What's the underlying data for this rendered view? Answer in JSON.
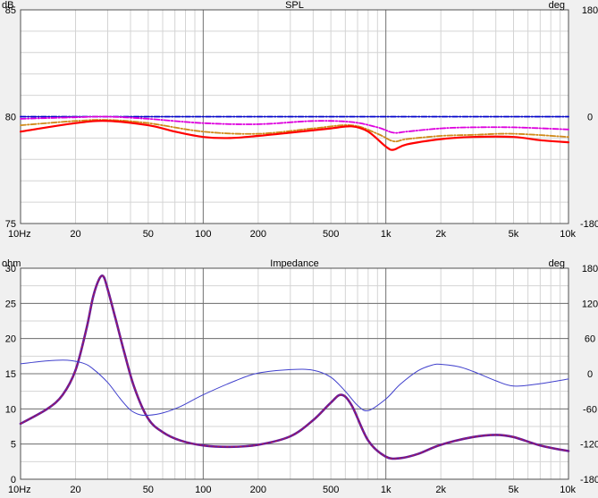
{
  "chart_data": [
    {
      "type": "line",
      "title": "SPL",
      "left_unit": "dB",
      "right_unit": "deg",
      "x_scale": "log",
      "xlim": [
        10,
        10000
      ],
      "ylim_left": [
        75,
        85
      ],
      "ylim_right": [
        -180,
        180
      ],
      "x_tick_labels": [
        "10Hz",
        "20",
        "50",
        "100",
        "200",
        "500",
        "1k",
        "2k",
        "5k",
        "10k"
      ],
      "x_tick_values": [
        10,
        20,
        50,
        100,
        200,
        500,
        1000,
        2000,
        5000,
        10000
      ],
      "y_left_tick_labels": [
        "85",
        "80",
        "75"
      ],
      "y_left_tick_values": [
        85,
        80,
        75
      ],
      "y_right_tick_labels": [
        "180",
        "0",
        "-180"
      ],
      "y_right_tick_values": [
        180,
        0,
        -180
      ],
      "grid": true,
      "series": [
        {
          "color": "#0000cc",
          "style": "dashdot",
          "x": [
            10,
            100,
            1000,
            10000
          ],
          "y": [
            80.0,
            80.0,
            80.0,
            80.0
          ]
        },
        {
          "color": "#dd00dd",
          "style": "dashdot",
          "x": [
            10,
            20,
            30,
            50,
            100,
            200,
            400,
            650,
            900,
            1100,
            1300,
            2000,
            3000,
            5000,
            10000
          ],
          "y": [
            79.9,
            79.97,
            80.0,
            79.9,
            79.7,
            79.65,
            79.8,
            79.75,
            79.5,
            79.25,
            79.3,
            79.45,
            79.5,
            79.5,
            79.4
          ]
        },
        {
          "color": "#d08a1a",
          "style": "dashdot",
          "x": [
            10,
            20,
            30,
            50,
            100,
            200,
            400,
            650,
            900,
            1100,
            1300,
            2000,
            3000,
            5000,
            10000
          ],
          "y": [
            79.6,
            79.8,
            79.85,
            79.7,
            79.3,
            79.2,
            79.45,
            79.6,
            79.2,
            78.85,
            78.95,
            79.1,
            79.15,
            79.2,
            79.05
          ]
        },
        {
          "color": "#ff0000",
          "style": "solid",
          "x": [
            10,
            20,
            30,
            50,
            70,
            100,
            140,
            200,
            300,
            500,
            650,
            800,
            1000,
            1100,
            1300,
            2000,
            3000,
            5000,
            7000,
            10000
          ],
          "y": [
            79.3,
            79.7,
            79.8,
            79.6,
            79.3,
            79.05,
            79.0,
            79.1,
            79.25,
            79.45,
            79.55,
            79.3,
            78.6,
            78.45,
            78.7,
            78.95,
            79.05,
            79.05,
            78.9,
            78.8
          ]
        }
      ]
    },
    {
      "type": "line",
      "title": "Impedance",
      "left_unit": "ohm",
      "right_unit": "deg",
      "x_scale": "log",
      "xlim": [
        10,
        10000
      ],
      "ylim_left": [
        0,
        30
      ],
      "ylim_right": [
        -180,
        180
      ],
      "x_tick_labels": [
        "10Hz",
        "20",
        "50",
        "100",
        "200",
        "500",
        "1k",
        "2k",
        "5k",
        "10k"
      ],
      "x_tick_values": [
        10,
        20,
        50,
        100,
        200,
        500,
        1000,
        2000,
        5000,
        10000
      ],
      "y_left_tick_labels": [
        "30",
        "25",
        "20",
        "15",
        "10",
        "5",
        "0"
      ],
      "y_left_tick_values": [
        30,
        25,
        20,
        15,
        10,
        5,
        0
      ],
      "y_right_tick_labels": [
        "180",
        "120",
        "60",
        "0",
        "-60",
        "-120",
        "-180"
      ],
      "y_right_tick_values": [
        180,
        120,
        60,
        0,
        -60,
        -120,
        -180
      ],
      "grid": true,
      "series": [
        {
          "name": "impedance magnitude",
          "color": "#6a1a9a",
          "axis": "left",
          "x": [
            10,
            14,
            17,
            20,
            23,
            25,
            27,
            28.5,
            30,
            33,
            37,
            42,
            50,
            60,
            75,
            100,
            140,
            200,
            300,
            400,
            500,
            570,
            650,
            800,
            1000,
            1200,
            1500,
            2000,
            3000,
            4000,
            5000,
            7000,
            10000
          ],
          "y": [
            7.9,
            10.0,
            12.0,
            15.5,
            21.5,
            26.0,
            28.5,
            28.8,
            27.0,
            23.0,
            18.0,
            13.0,
            8.6,
            6.7,
            5.5,
            4.8,
            4.6,
            4.9,
            6.1,
            8.4,
            10.9,
            12.0,
            10.5,
            5.5,
            3.2,
            3.0,
            3.6,
            4.9,
            6.0,
            6.3,
            6.0,
            4.8,
            4.0
          ]
        },
        {
          "name": "impedance phase",
          "color": "#4040cc",
          "axis": "right",
          "x": [
            10,
            14,
            18,
            22,
            25,
            30,
            35,
            40,
            45,
            50,
            60,
            75,
            100,
            150,
            200,
            300,
            400,
            500,
            600,
            700,
            800,
            1000,
            1200,
            1500,
            1800,
            2000,
            2500,
            3000,
            4000,
            5000,
            7000,
            10000
          ],
          "y": [
            17,
            22,
            23,
            18,
            8,
            -15,
            -42,
            -62,
            -70,
            -71,
            -67,
            -56,
            -36,
            -12,
            1,
            7,
            6,
            -6,
            -30,
            -54,
            -63,
            -43,
            -18,
            5,
            15,
            16,
            12,
            4,
            -12,
            -21,
            -17,
            -9
          ]
        }
      ]
    }
  ]
}
